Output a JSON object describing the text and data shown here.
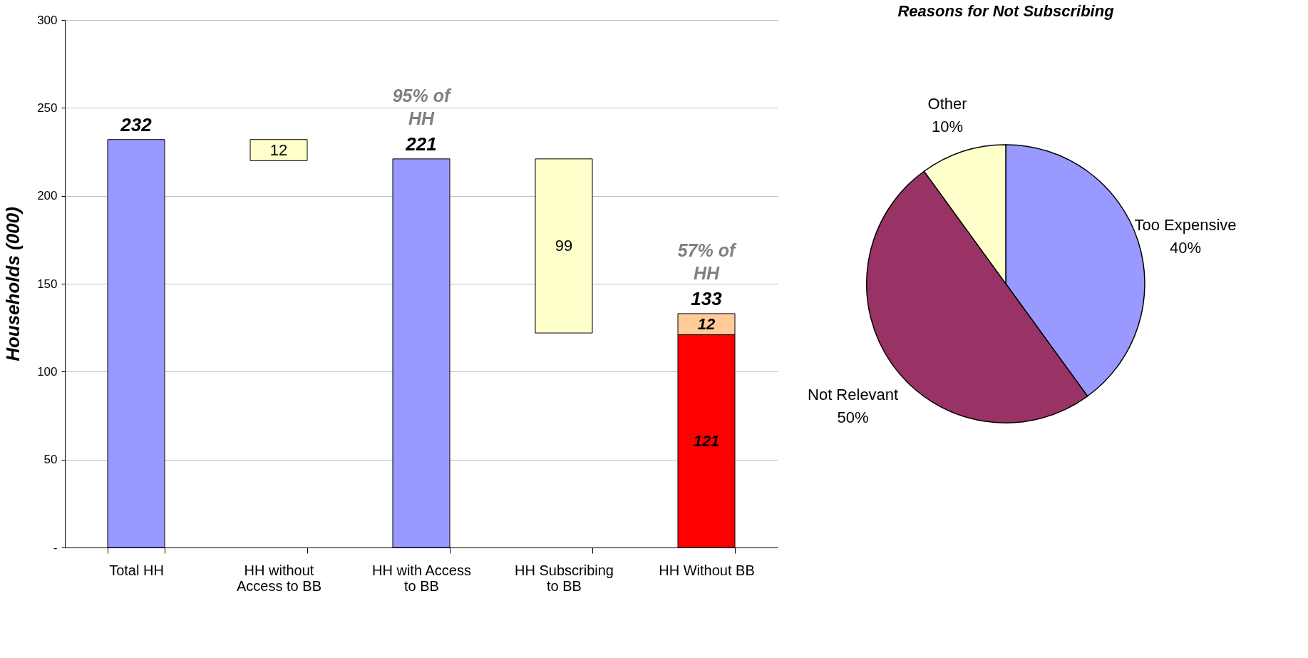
{
  "chart_data": [
    {
      "type": "bar",
      "ylabel": "Households (000)",
      "categories": [
        "Total HH",
        "HH without Access to BB",
        "HH with Access to BB",
        "HH Subscribing to BB",
        "HH Without BB"
      ],
      "series": [
        {
          "colors": [
            "#9999ff",
            "#ffffcc",
            "#9999ff",
            "#ffffcc",
            "#ff0000"
          ],
          "values": [
            232,
            12,
            221,
            99,
            121
          ],
          "base": [
            0,
            220,
            0,
            122,
            0
          ],
          "value_labels": [
            null,
            "12",
            null,
            "99",
            "121"
          ]
        },
        {
          "colors": [
            null,
            null,
            null,
            null,
            "#ffcc99"
          ],
          "values": [
            null,
            null,
            null,
            null,
            12
          ],
          "base": [
            null,
            null,
            null,
            null,
            121
          ],
          "value_labels": [
            null,
            null,
            null,
            null,
            "12"
          ]
        }
      ],
      "totals": [
        "232",
        null,
        "221",
        null,
        "133"
      ],
      "annotations": [
        {
          "text": "95% of HH",
          "x": "HH with Access to BB",
          "y": 221
        },
        {
          "text": "57% of HH",
          "x": "HH Without BB",
          "y": 133
        }
      ],
      "ylim": [
        0,
        300
      ],
      "yticks": [
        {
          "value": 0,
          "label": "-"
        },
        50,
        100,
        150,
        200,
        250,
        300
      ],
      "grid": "y"
    },
    {
      "type": "pie",
      "title": "Reasons for Not Subscribing",
      "categories": [
        "Too Expensive",
        "Not Relevant",
        "Other"
      ],
      "values": [
        40,
        50,
        10
      ],
      "value_labels": [
        "40%",
        "50%",
        "10%"
      ],
      "colors": [
        "#9999ff",
        "#993366",
        "#ffffcc"
      ]
    }
  ]
}
